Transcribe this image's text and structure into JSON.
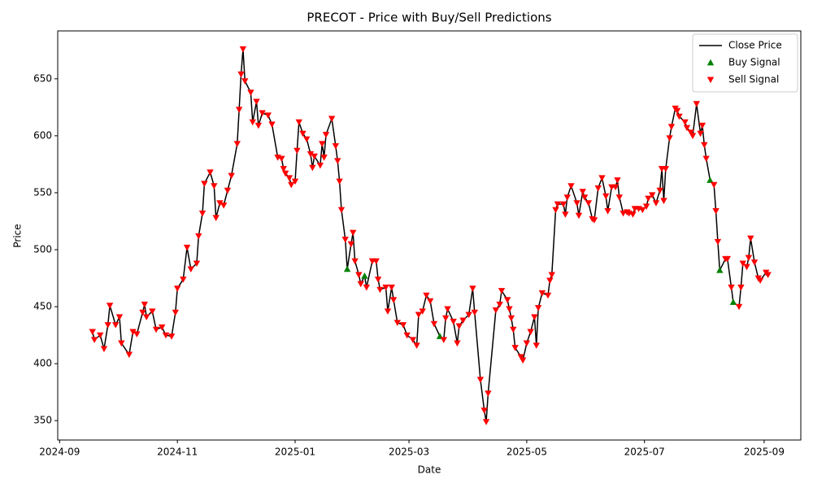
{
  "chart_data": {
    "type": "line",
    "title": "PRECOT - Price with Buy/Sell Predictions",
    "x_label": "Date",
    "y_label": "Price",
    "x": [
      "2024-09-18",
      "2024-09-19",
      "2024-09-22",
      "2024-09-24",
      "2024-09-26",
      "2024-09-27",
      "2024-09-30",
      "2024-10-02",
      "2024-10-03",
      "2024-10-07",
      "2024-10-09",
      "2024-10-11",
      "2024-10-14",
      "2024-10-15",
      "2024-10-16",
      "2024-10-19",
      "2024-10-21",
      "2024-10-24",
      "2024-10-26",
      "2024-10-29",
      "2024-10-31",
      "2024-11-01",
      "2024-11-04",
      "2024-11-06",
      "2024-11-08",
      "2024-11-11",
      "2024-11-12",
      "2024-11-14",
      "2024-11-15",
      "2024-11-18",
      "2024-11-20",
      "2024-11-21",
      "2024-11-23",
      "2024-11-25",
      "2024-11-27",
      "2024-11-29",
      "2024-12-02",
      "2024-12-03",
      "2024-12-04",
      "2024-12-05",
      "2024-12-06",
      "2024-12-09",
      "2024-12-10",
      "2024-12-12",
      "2024-12-13",
      "2024-12-15",
      "2024-12-18",
      "2024-12-20",
      "2024-12-23",
      "2024-12-25",
      "2024-12-26",
      "2024-12-27",
      "2024-12-29",
      "2024-12-30",
      "2025-01-01",
      "2025-01-02",
      "2025-01-03",
      "2025-01-05",
      "2025-01-07",
      "2025-01-09",
      "2025-01-10",
      "2025-01-11",
      "2025-01-14",
      "2025-01-15",
      "2025-01-16",
      "2025-01-17",
      "2025-01-20",
      "2025-01-22",
      "2025-01-23",
      "2025-01-24",
      "2025-01-25",
      "2025-01-27",
      "2025-01-28",
      "2025-01-30",
      "2025-01-31",
      "2025-02-01",
      "2025-02-03",
      "2025-02-04",
      "2025-02-06",
      "2025-02-07",
      "2025-02-10",
      "2025-02-12",
      "2025-02-13",
      "2025-02-14",
      "2025-02-17",
      "2025-02-18",
      "2025-02-20",
      "2025-02-21",
      "2025-02-23",
      "2025-02-26",
      "2025-02-28",
      "2025-03-03",
      "2025-03-05",
      "2025-03-06",
      "2025-03-08",
      "2025-03-10",
      "2025-03-12",
      "2025-03-14",
      "2025-03-17",
      "2025-03-19",
      "2025-03-20",
      "2025-03-21",
      "2025-03-24",
      "2025-03-26",
      "2025-03-27",
      "2025-03-29",
      "2025-04-01",
      "2025-04-03",
      "2025-04-04",
      "2025-04-07",
      "2025-04-09",
      "2025-04-10",
      "2025-04-11",
      "2025-04-15",
      "2025-04-17",
      "2025-04-18",
      "2025-04-21",
      "2025-04-22",
      "2025-04-23",
      "2025-04-24",
      "2025-04-25",
      "2025-04-28",
      "2025-04-29",
      "2025-05-01",
      "2025-05-03",
      "2025-05-05",
      "2025-05-06",
      "2025-05-07",
      "2025-05-09",
      "2025-05-12",
      "2025-05-13",
      "2025-05-14",
      "2025-05-16",
      "2025-05-17",
      "2025-05-20",
      "2025-05-21",
      "2025-05-22",
      "2025-05-24",
      "2025-05-27",
      "2025-05-28",
      "2025-05-30",
      "2025-05-31",
      "2025-06-02",
      "2025-06-04",
      "2025-06-05",
      "2025-06-07",
      "2025-06-09",
      "2025-06-11",
      "2025-06-12",
      "2025-06-14",
      "2025-06-16",
      "2025-06-17",
      "2025-06-18",
      "2025-06-20",
      "2025-06-22",
      "2025-06-23",
      "2025-06-25",
      "2025-06-26",
      "2025-06-28",
      "2025-06-30",
      "2025-07-02",
      "2025-07-03",
      "2025-07-05",
      "2025-07-07",
      "2025-07-09",
      "2025-07-10",
      "2025-07-11",
      "2025-07-12",
      "2025-07-14",
      "2025-07-15",
      "2025-07-17",
      "2025-07-18",
      "2025-07-19",
      "2025-07-22",
      "2025-07-23",
      "2025-07-25",
      "2025-07-26",
      "2025-07-28",
      "2025-07-30",
      "2025-07-31",
      "2025-08-01",
      "2025-08-02",
      "2025-08-04",
      "2025-08-06",
      "2025-08-07",
      "2025-08-08",
      "2025-08-09",
      "2025-08-12",
      "2025-08-13",
      "2025-08-15",
      "2025-08-16",
      "2025-08-19",
      "2025-08-20",
      "2025-08-21",
      "2025-08-23",
      "2025-08-24",
      "2025-08-25",
      "2025-08-27",
      "2025-08-29",
      "2025-08-30",
      "2025-09-02",
      "2025-09-03"
    ],
    "series": [
      {
        "name": "Close Price",
        "color": "#000000",
        "style": "line",
        "values": [
          428,
          421,
          425,
          413,
          434,
          451,
          434,
          441,
          418,
          408,
          428,
          426,
          445,
          452,
          441,
          446,
          430,
          432,
          425,
          424,
          445,
          466,
          474,
          502,
          483,
          488,
          512,
          532,
          558,
          568,
          556,
          528,
          541,
          539,
          552,
          565,
          593,
          623,
          654,
          676,
          648,
          638,
          612,
          630,
          609,
          620,
          618,
          610,
          581,
          580,
          571,
          567,
          563,
          557,
          560,
          587,
          612,
          602,
          597,
          584,
          572,
          582,
          574,
          593,
          581,
          601,
          615,
          591,
          578,
          560,
          535,
          509,
          483,
          505,
          515,
          490,
          478,
          470,
          477,
          467,
          490,
          490,
          474,
          465,
          467,
          446,
          467,
          456,
          436,
          434,
          425,
          421,
          416,
          443,
          446,
          460,
          455,
          435,
          424,
          421,
          440,
          448,
          437,
          418,
          433,
          438,
          443,
          466,
          445,
          386,
          359,
          349,
          374,
          447,
          452,
          464,
          456,
          448,
          440,
          430,
          414,
          406,
          403,
          418,
          428,
          441,
          416,
          449,
          462,
          460,
          473,
          478,
          535,
          540,
          540,
          531,
          546,
          556,
          541,
          530,
          551,
          546,
          541,
          527,
          526,
          554,
          563,
          547,
          534,
          555,
          555,
          561,
          546,
          532,
          533,
          532,
          531,
          536,
          536,
          535,
          538,
          545,
          548,
          541,
          552,
          571,
          543,
          571,
          598,
          608,
          624,
          622,
          617,
          612,
          607,
          603,
          600,
          628,
          602,
          609,
          592,
          580,
          561,
          557,
          534,
          507,
          482,
          492,
          492,
          467,
          454,
          450,
          467,
          488,
          485,
          493,
          510,
          489,
          475,
          473,
          480,
          478
        ]
      },
      {
        "name": "Buy Signal",
        "color": "#008000",
        "style": "triangle-up",
        "x": [
          "2025-01-28",
          "2025-02-06",
          "2025-03-17",
          "2025-08-04",
          "2025-08-09",
          "2025-08-16"
        ],
        "values": [
          483,
          477,
          424,
          561,
          482,
          454
        ]
      },
      {
        "name": "Sell Signal",
        "color": "#ff0000",
        "style": "triangle-down",
        "values": [
          428,
          421,
          425,
          413,
          434,
          451,
          434,
          441,
          418,
          408,
          428,
          426,
          445,
          452,
          441,
          446,
          430,
          432,
          425,
          424,
          445,
          466,
          474,
          502,
          483,
          488,
          512,
          532,
          558,
          568,
          556,
          528,
          541,
          539,
          552,
          565,
          593,
          623,
          654,
          676,
          648,
          638,
          612,
          630,
          609,
          620,
          618,
          610,
          581,
          580,
          571,
          567,
          563,
          557,
          560,
          587,
          612,
          602,
          597,
          584,
          572,
          582,
          574,
          593,
          581,
          601,
          615,
          591,
          578,
          560,
          535,
          509,
          null,
          505,
          515,
          490,
          478,
          470,
          null,
          467,
          490,
          490,
          474,
          465,
          467,
          446,
          467,
          456,
          436,
          434,
          425,
          421,
          416,
          443,
          446,
          460,
          455,
          435,
          null,
          421,
          440,
          448,
          437,
          418,
          433,
          438,
          443,
          466,
          445,
          386,
          359,
          349,
          374,
          447,
          452,
          464,
          456,
          448,
          440,
          430,
          414,
          406,
          403,
          418,
          428,
          441,
          416,
          449,
          462,
          460,
          473,
          478,
          535,
          540,
          540,
          531,
          546,
          556,
          541,
          530,
          551,
          546,
          541,
          527,
          526,
          554,
          563,
          547,
          534,
          555,
          555,
          561,
          546,
          532,
          533,
          532,
          531,
          536,
          536,
          535,
          538,
          545,
          548,
          541,
          552,
          571,
          543,
          571,
          598,
          608,
          624,
          622,
          617,
          612,
          607,
          603,
          600,
          628,
          602,
          609,
          592,
          580,
          null,
          557,
          534,
          507,
          null,
          492,
          492,
          467,
          null,
          450,
          467,
          488,
          485,
          493,
          510,
          489,
          475,
          473,
          480,
          478
        ]
      }
    ],
    "xlim": [
      "2024-08-31",
      "2025-09-20"
    ],
    "xticks": [
      {
        "value": "2024-09-01",
        "label": "2024-09"
      },
      {
        "value": "2024-11-01",
        "label": "2024-11"
      },
      {
        "value": "2025-01-01",
        "label": "2025-01"
      },
      {
        "value": "2025-03-01",
        "label": "2025-03"
      },
      {
        "value": "2025-05-01",
        "label": "2025-05"
      },
      {
        "value": "2025-07-01",
        "label": "2025-07"
      },
      {
        "value": "2025-09-01",
        "label": "2025-09"
      }
    ],
    "ylim": [
      333,
      692
    ],
    "yticks": [
      350,
      400,
      450,
      500,
      550,
      600,
      650
    ],
    "grid": false,
    "legend": "upper right"
  }
}
